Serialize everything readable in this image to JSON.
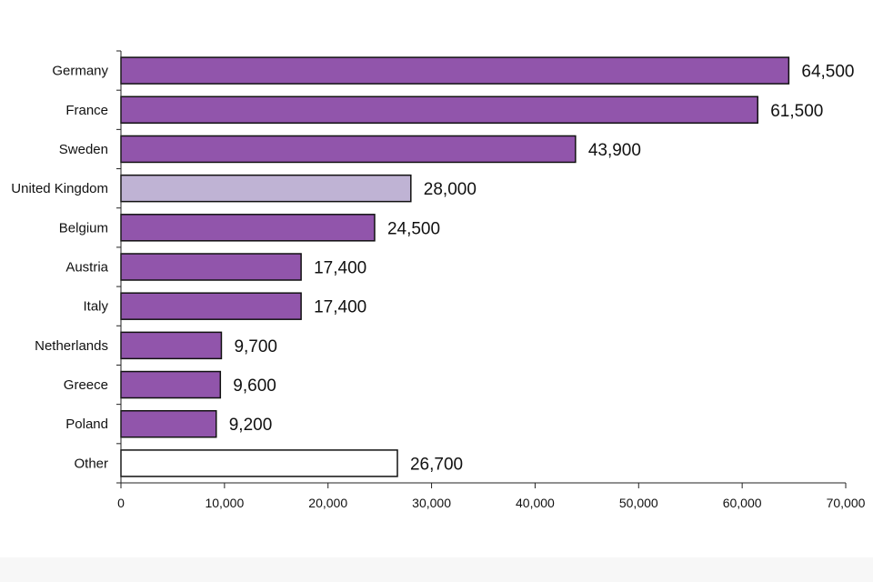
{
  "chart_data": {
    "type": "bar",
    "orientation": "horizontal",
    "title": "",
    "xlabel": "",
    "ylabel": "",
    "xlim": [
      0,
      70000
    ],
    "grid": false,
    "categories": [
      "Germany",
      "France",
      "Sweden",
      "United Kingdom",
      "Belgium",
      "Austria",
      "Italy",
      "Netherlands",
      "Greece",
      "Poland",
      "Other"
    ],
    "values": [
      64500,
      61500,
      43900,
      28000,
      24500,
      17400,
      17400,
      9700,
      9600,
      9200,
      26700
    ],
    "value_labels": [
      "64,500",
      "61,500",
      "43,900",
      "28,000",
      "24,500",
      "17,400",
      "17,400",
      "9,700",
      "9,600",
      "9,200",
      "26,700"
    ],
    "x_ticks": [
      0,
      10000,
      20000,
      30000,
      40000,
      50000,
      60000,
      70000
    ],
    "x_tick_labels": [
      "0",
      "10,000",
      "20,000",
      "30,000",
      "40,000",
      "50,000",
      "60,000",
      "70,000"
    ],
    "bar_colors": [
      "#9155AB",
      "#9155AB",
      "#9155AB",
      "#BFB3D4",
      "#9155AB",
      "#9155AB",
      "#9155AB",
      "#9155AB",
      "#9155AB",
      "#9155AB",
      "#FFFFFF"
    ]
  }
}
